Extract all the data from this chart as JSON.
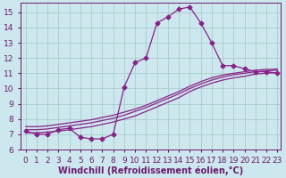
{
  "bg_color": "#cce8ee",
  "grid_color": "#aacccc",
  "line_color": "#882288",
  "xlim_min": -0.5,
  "xlim_max": 23.3,
  "ylim_min": 6.0,
  "ylim_max": 15.6,
  "xticks": [
    0,
    1,
    2,
    3,
    4,
    5,
    6,
    7,
    8,
    9,
    10,
    11,
    12,
    13,
    14,
    15,
    16,
    17,
    18,
    19,
    20,
    21,
    22,
    23
  ],
  "yticks": [
    6,
    7,
    8,
    9,
    10,
    11,
    12,
    13,
    14,
    15
  ],
  "xlabel": "Windchill (Refroidissement éolien,°C)",
  "curve_main_x": [
    0,
    1,
    2,
    3,
    4,
    5,
    6,
    7,
    8,
    9,
    10,
    11,
    12,
    13,
    14,
    15,
    16,
    17,
    18,
    19,
    20,
    21,
    22,
    23
  ],
  "curve_main_y": [
    7.2,
    7.0,
    7.0,
    7.3,
    7.4,
    6.8,
    6.7,
    6.7,
    7.0,
    10.1,
    11.7,
    12.0,
    14.3,
    14.7,
    15.2,
    15.35,
    14.3,
    13.0,
    11.5,
    11.5,
    11.3,
    11.1,
    11.1,
    11.0
  ],
  "curve_a_x": [
    0,
    1,
    2,
    3,
    4,
    5,
    6,
    7,
    8,
    9,
    10,
    11,
    12,
    13,
    14,
    15,
    16,
    17,
    18,
    19,
    20,
    21,
    22,
    23
  ],
  "curve_a_y": [
    7.1,
    7.1,
    7.15,
    7.2,
    7.3,
    7.4,
    7.5,
    7.65,
    7.8,
    8.0,
    8.2,
    8.5,
    8.8,
    9.1,
    9.4,
    9.8,
    10.1,
    10.35,
    10.55,
    10.7,
    10.8,
    10.95,
    11.0,
    11.05
  ],
  "curve_b_x": [
    0,
    1,
    2,
    3,
    4,
    5,
    6,
    7,
    8,
    9,
    10,
    11,
    12,
    13,
    14,
    15,
    16,
    17,
    18,
    19,
    20,
    21,
    22,
    23
  ],
  "curve_b_y": [
    7.3,
    7.3,
    7.35,
    7.45,
    7.55,
    7.65,
    7.75,
    7.9,
    8.05,
    8.25,
    8.5,
    8.75,
    9.05,
    9.35,
    9.65,
    10.0,
    10.3,
    10.55,
    10.75,
    10.9,
    11.0,
    11.1,
    11.15,
    11.2
  ],
  "curve_c_x": [
    0,
    1,
    2,
    3,
    4,
    5,
    6,
    7,
    8,
    9,
    10,
    11,
    12,
    13,
    14,
    15,
    16,
    17,
    18,
    19,
    20,
    21,
    22,
    23
  ],
  "curve_c_y": [
    7.5,
    7.5,
    7.55,
    7.65,
    7.75,
    7.85,
    7.95,
    8.1,
    8.25,
    8.45,
    8.65,
    8.9,
    9.2,
    9.5,
    9.8,
    10.15,
    10.45,
    10.7,
    10.88,
    11.0,
    11.1,
    11.2,
    11.25,
    11.28
  ],
  "marker": "D",
  "marker_size": 2.5,
  "font_color": "#6b1a6b",
  "font_size_ticks": 6.5,
  "font_size_xlabel": 7.0,
  "linewidth": 0.9
}
